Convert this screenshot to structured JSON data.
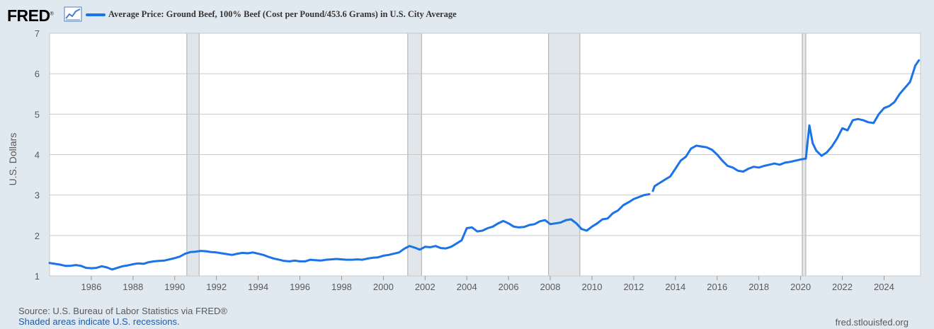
{
  "header": {
    "logo_text": "FRED",
    "logo_suffix": "®",
    "logo_icon": "line-chart-icon",
    "series_title": "Average Price: Ground Beef, 100% Beef (Cost per Pound/453.6 Grams) in U.S. City Average"
  },
  "footer": {
    "source": "Source: U.S. Bureau of Labor Statistics via FRED®",
    "shaded_note": "Shaded areas indicate U.S. recessions.",
    "site": "fred.stlouisfed.org"
  },
  "colors": {
    "line": "#1a73e8",
    "recession": "#e1e6ea",
    "background": "#e1e9f0",
    "plot_bg": "#ffffff",
    "grid": "#c9c9c9"
  },
  "chart_data": {
    "type": "line",
    "title": "Average Price: Ground Beef, 100% Beef (Cost per Pound/453.6 Grams) in U.S. City Average",
    "xlabel": "",
    "ylabel": "U.S. Dollars",
    "xlim": [
      1984.0,
      2025.75
    ],
    "ylim": [
      1,
      7
    ],
    "yticks": [
      1,
      2,
      3,
      4,
      5,
      6,
      7
    ],
    "xticks": [
      1986,
      1988,
      1990,
      1992,
      1994,
      1996,
      1998,
      2000,
      2002,
      2004,
      2006,
      2008,
      2010,
      2012,
      2014,
      2016,
      2018,
      2020,
      2022,
      2024
    ],
    "grid": true,
    "recessions": [
      [
        1990.58,
        1991.17
      ],
      [
        2001.17,
        2001.83
      ],
      [
        2007.92,
        2009.42
      ],
      [
        2020.08,
        2020.25
      ]
    ],
    "series": [
      {
        "name": "Average Price: Ground Beef, 100% Beef",
        "segments": [
          [
            [
              1984.0,
              1.32
            ],
            [
              1984.25,
              1.3
            ],
            [
              1984.5,
              1.28
            ],
            [
              1984.75,
              1.25
            ],
            [
              1985.0,
              1.25
            ],
            [
              1985.25,
              1.27
            ],
            [
              1985.5,
              1.25
            ],
            [
              1985.75,
              1.2
            ],
            [
              1986.0,
              1.19
            ],
            [
              1986.25,
              1.2
            ],
            [
              1986.5,
              1.24
            ],
            [
              1986.75,
              1.21
            ],
            [
              1987.0,
              1.16
            ],
            [
              1987.25,
              1.2
            ],
            [
              1987.5,
              1.24
            ],
            [
              1987.75,
              1.26
            ],
            [
              1988.0,
              1.29
            ],
            [
              1988.25,
              1.31
            ],
            [
              1988.5,
              1.3
            ],
            [
              1988.75,
              1.34
            ],
            [
              1989.0,
              1.36
            ],
            [
              1989.25,
              1.37
            ],
            [
              1989.5,
              1.38
            ],
            [
              1989.75,
              1.41
            ],
            [
              1990.0,
              1.44
            ],
            [
              1990.25,
              1.48
            ],
            [
              1990.5,
              1.55
            ],
            [
              1990.75,
              1.59
            ],
            [
              1991.0,
              1.6
            ],
            [
              1991.25,
              1.62
            ],
            [
              1991.5,
              1.61
            ],
            [
              1991.75,
              1.59
            ],
            [
              1992.0,
              1.58
            ],
            [
              1992.25,
              1.56
            ],
            [
              1992.5,
              1.54
            ],
            [
              1992.75,
              1.52
            ],
            [
              1993.0,
              1.55
            ],
            [
              1993.25,
              1.57
            ],
            [
              1993.5,
              1.56
            ],
            [
              1993.75,
              1.58
            ],
            [
              1994.0,
              1.55
            ],
            [
              1994.25,
              1.52
            ],
            [
              1994.5,
              1.47
            ],
            [
              1994.75,
              1.43
            ],
            [
              1995.0,
              1.4
            ],
            [
              1995.25,
              1.37
            ],
            [
              1995.5,
              1.36
            ],
            [
              1995.75,
              1.38
            ],
            [
              1996.0,
              1.36
            ],
            [
              1996.25,
              1.36
            ],
            [
              1996.5,
              1.4
            ],
            [
              1996.75,
              1.39
            ],
            [
              1997.0,
              1.38
            ],
            [
              1997.25,
              1.4
            ],
            [
              1997.5,
              1.41
            ],
            [
              1997.75,
              1.42
            ],
            [
              1998.0,
              1.41
            ],
            [
              1998.25,
              1.4
            ],
            [
              1998.5,
              1.4
            ],
            [
              1998.75,
              1.41
            ],
            [
              1999.0,
              1.4
            ],
            [
              1999.25,
              1.43
            ],
            [
              1999.5,
              1.45
            ],
            [
              1999.75,
              1.46
            ],
            [
              2000.0,
              1.5
            ],
            [
              2000.25,
              1.52
            ],
            [
              2000.5,
              1.55
            ],
            [
              2000.75,
              1.58
            ],
            [
              2001.0,
              1.67
            ],
            [
              2001.25,
              1.74
            ],
            [
              2001.5,
              1.7
            ],
            [
              2001.75,
              1.65
            ],
            [
              2002.0,
              1.72
            ],
            [
              2002.25,
              1.71
            ],
            [
              2002.5,
              1.74
            ],
            [
              2002.75,
              1.69
            ],
            [
              2003.0,
              1.68
            ],
            [
              2003.25,
              1.72
            ],
            [
              2003.5,
              1.8
            ],
            [
              2003.75,
              1.88
            ],
            [
              2004.0,
              2.18
            ],
            [
              2004.25,
              2.2
            ],
            [
              2004.5,
              2.1
            ],
            [
              2004.75,
              2.12
            ],
            [
              2005.0,
              2.18
            ],
            [
              2005.25,
              2.22
            ],
            [
              2005.5,
              2.3
            ],
            [
              2005.75,
              2.36
            ],
            [
              2006.0,
              2.3
            ],
            [
              2006.25,
              2.22
            ],
            [
              2006.5,
              2.2
            ],
            [
              2006.75,
              2.21
            ],
            [
              2007.0,
              2.26
            ],
            [
              2007.25,
              2.28
            ],
            [
              2007.5,
              2.35
            ],
            [
              2007.75,
              2.38
            ],
            [
              2008.0,
              2.28
            ],
            [
              2008.25,
              2.3
            ],
            [
              2008.5,
              2.32
            ],
            [
              2008.75,
              2.38
            ],
            [
              2009.0,
              2.4
            ],
            [
              2009.25,
              2.3
            ],
            [
              2009.5,
              2.16
            ],
            [
              2009.75,
              2.12
            ],
            [
              2010.0,
              2.22
            ],
            [
              2010.25,
              2.3
            ],
            [
              2010.5,
              2.4
            ],
            [
              2010.75,
              2.42
            ],
            [
              2011.0,
              2.55
            ],
            [
              2011.25,
              2.62
            ],
            [
              2011.5,
              2.75
            ],
            [
              2011.75,
              2.82
            ],
            [
              2012.0,
              2.9
            ],
            [
              2012.25,
              2.95
            ],
            [
              2012.5,
              3.0
            ],
            [
              2012.75,
              3.02
            ]
          ],
          [
            [
              2012.92,
              3.1
            ],
            [
              2013.0,
              3.22
            ],
            [
              2013.25,
              3.3
            ],
            [
              2013.5,
              3.38
            ],
            [
              2013.75,
              3.46
            ],
            [
              2014.0,
              3.65
            ],
            [
              2014.25,
              3.85
            ],
            [
              2014.5,
              3.95
            ],
            [
              2014.75,
              4.15
            ],
            [
              2015.0,
              4.22
            ],
            [
              2015.25,
              4.2
            ],
            [
              2015.5,
              4.18
            ],
            [
              2015.75,
              4.12
            ],
            [
              2016.0,
              4.0
            ],
            [
              2016.25,
              3.85
            ],
            [
              2016.5,
              3.72
            ],
            [
              2016.75,
              3.68
            ],
            [
              2017.0,
              3.6
            ],
            [
              2017.25,
              3.58
            ],
            [
              2017.5,
              3.65
            ],
            [
              2017.75,
              3.7
            ],
            [
              2018.0,
              3.68
            ],
            [
              2018.25,
              3.72
            ],
            [
              2018.5,
              3.75
            ],
            [
              2018.75,
              3.78
            ],
            [
              2019.0,
              3.75
            ],
            [
              2019.25,
              3.8
            ],
            [
              2019.5,
              3.82
            ],
            [
              2019.75,
              3.85
            ],
            [
              2020.0,
              3.88
            ],
            [
              2020.25,
              3.9
            ],
            [
              2020.42,
              4.72
            ],
            [
              2020.58,
              4.28
            ],
            [
              2020.75,
              4.1
            ],
            [
              2021.0,
              3.97
            ],
            [
              2021.25,
              4.05
            ],
            [
              2021.5,
              4.2
            ],
            [
              2021.75,
              4.4
            ],
            [
              2022.0,
              4.65
            ],
            [
              2022.25,
              4.6
            ],
            [
              2022.5,
              4.85
            ],
            [
              2022.75,
              4.88
            ],
            [
              2023.0,
              4.85
            ],
            [
              2023.25,
              4.8
            ],
            [
              2023.5,
              4.78
            ],
            [
              2023.75,
              5.0
            ],
            [
              2024.0,
              5.15
            ],
            [
              2024.25,
              5.2
            ],
            [
              2024.5,
              5.3
            ],
            [
              2024.75,
              5.5
            ],
            [
              2025.0,
              5.65
            ],
            [
              2025.25,
              5.8
            ],
            [
              2025.5,
              6.2
            ],
            [
              2025.67,
              6.33
            ]
          ]
        ]
      }
    ]
  }
}
